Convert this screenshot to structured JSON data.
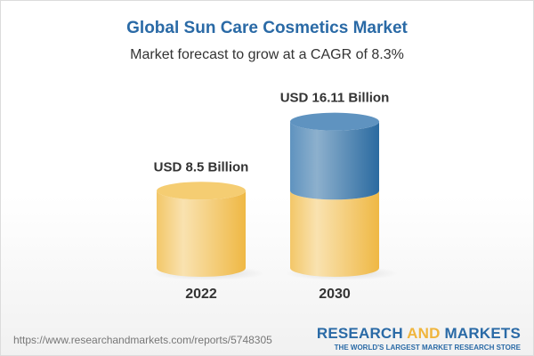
{
  "title": "Global Sun Care Cosmetics Market",
  "subtitle": "Market forecast to grow at a CAGR of 8.3%",
  "chart_data": {
    "type": "bar",
    "categories": [
      "2022",
      "2030"
    ],
    "values": [
      8.5,
      16.11
    ],
    "data_labels": [
      "USD 8.5 Billion",
      "USD 16.11 Billion"
    ],
    "ylabel": "",
    "xlabel": "",
    "unit": "USD Billion",
    "grid": false,
    "colors": {
      "base": "#f3c35a",
      "growth": "#3f7fb5"
    }
  },
  "footer": {
    "url": "https://www.researchandmarkets.com/reports/5748305",
    "logo_part1": "RESEARCH ",
    "logo_part2": "AND",
    "logo_part3": " MARKETS",
    "tagline": "THE WORLD'S LARGEST MARKET RESEARCH STORE"
  }
}
